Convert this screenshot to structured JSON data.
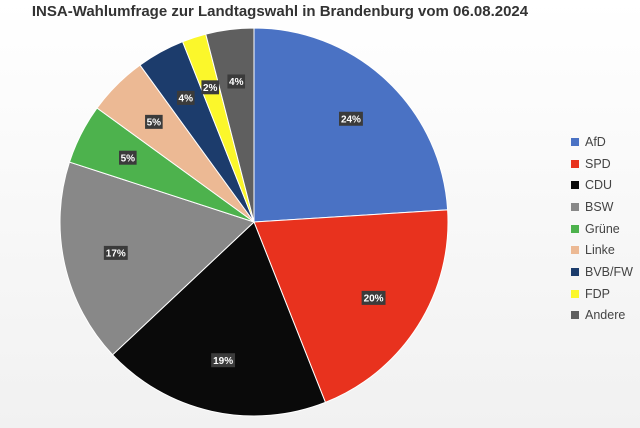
{
  "chart_data": {
    "type": "pie",
    "title": "INSA-Wahlumfrage zur Landtagswahl in Brandenburg vom 06.08.2024",
    "slices": [
      {
        "name": "AfD",
        "value": 24,
        "label": "24%",
        "color": "#4a72c4"
      },
      {
        "name": "SPD",
        "value": 20,
        "label": "20%",
        "color": "#e8321e"
      },
      {
        "name": "CDU",
        "value": 19,
        "label": "19%",
        "color": "#0a0a0a"
      },
      {
        "name": "BSW",
        "value": 17,
        "label": "17%",
        "color": "#888888"
      },
      {
        "name": "Grüne",
        "value": 5,
        "label": "5%",
        "color": "#4db24d"
      },
      {
        "name": "Linke",
        "value": 5,
        "label": "5%",
        "color": "#ecb994"
      },
      {
        "name": "BVB/FW",
        "value": 4,
        "label": "4%",
        "color": "#1c3c6c"
      },
      {
        "name": "FDP",
        "value": 2,
        "label": "2%",
        "color": "#fbf72b"
      },
      {
        "name": "Andere",
        "value": 4,
        "label": "4%",
        "color": "#5f5f5f"
      }
    ],
    "legend_position": "right"
  }
}
